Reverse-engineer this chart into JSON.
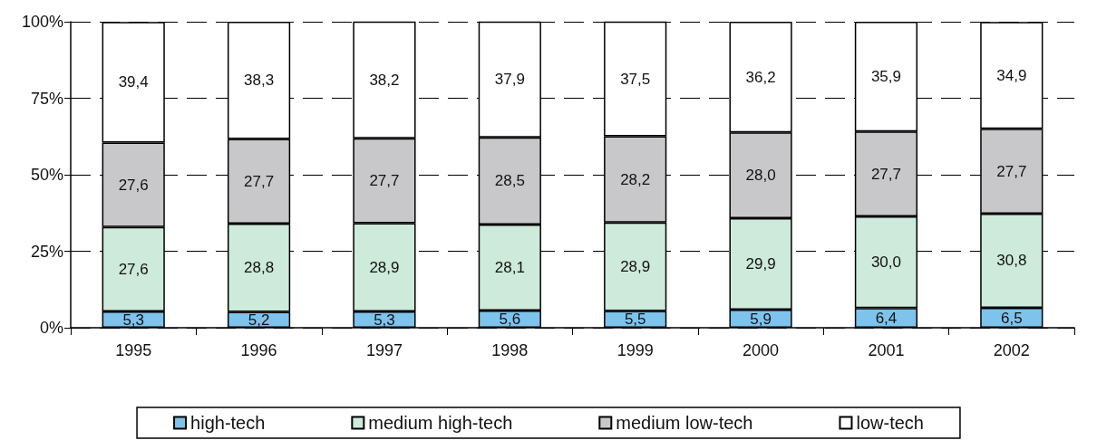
{
  "chart_data": {
    "type": "bar",
    "stacked": true,
    "categories": [
      "1995",
      "1996",
      "1997",
      "1998",
      "1999",
      "2000",
      "2001",
      "2002"
    ],
    "series": [
      {
        "name": "high-tech",
        "color": "#7ec3ec",
        "values": [
          5.3,
          5.2,
          5.3,
          5.6,
          5.5,
          5.9,
          6.4,
          6.5
        ],
        "value_labels": [
          "5,3",
          "5,2",
          "5,3",
          "5,6",
          "5,5",
          "5,9",
          "6,4",
          "6,5"
        ]
      },
      {
        "name": "medium high-tech",
        "color": "#cdeadb",
        "values": [
          27.6,
          28.8,
          28.9,
          28.1,
          28.9,
          29.9,
          30.0,
          30.8
        ],
        "value_labels": [
          "27,6",
          "28,8",
          "28,9",
          "28,1",
          "28,9",
          "29,9",
          "30,0",
          "30,8"
        ]
      },
      {
        "name": "medium low-tech",
        "color": "#c8c8ca",
        "values": [
          27.6,
          27.7,
          27.7,
          28.5,
          28.2,
          28.0,
          27.7,
          27.7
        ],
        "value_labels": [
          "27,6",
          "27,7",
          "27,7",
          "28,5",
          "28,2",
          "28,0",
          "27,7",
          "27,7"
        ]
      },
      {
        "name": "low-tech",
        "color": "#ffffff",
        "values": [
          39.4,
          38.3,
          38.2,
          37.9,
          37.5,
          36.2,
          35.9,
          34.9
        ],
        "value_labels": [
          "39,4",
          "38,3",
          "38,2",
          "37,9",
          "37,5",
          "36,2",
          "35,9",
          "34,9"
        ]
      }
    ],
    "ylim": [
      0,
      100
    ],
    "yticks": [
      {
        "value": 0,
        "label": "0%"
      },
      {
        "value": 25,
        "label": "25%"
      },
      {
        "value": 50,
        "label": "50%"
      },
      {
        "value": 75,
        "label": "75%"
      },
      {
        "value": 100,
        "label": "100%"
      }
    ],
    "grid": "y",
    "legend": "bottom"
  }
}
